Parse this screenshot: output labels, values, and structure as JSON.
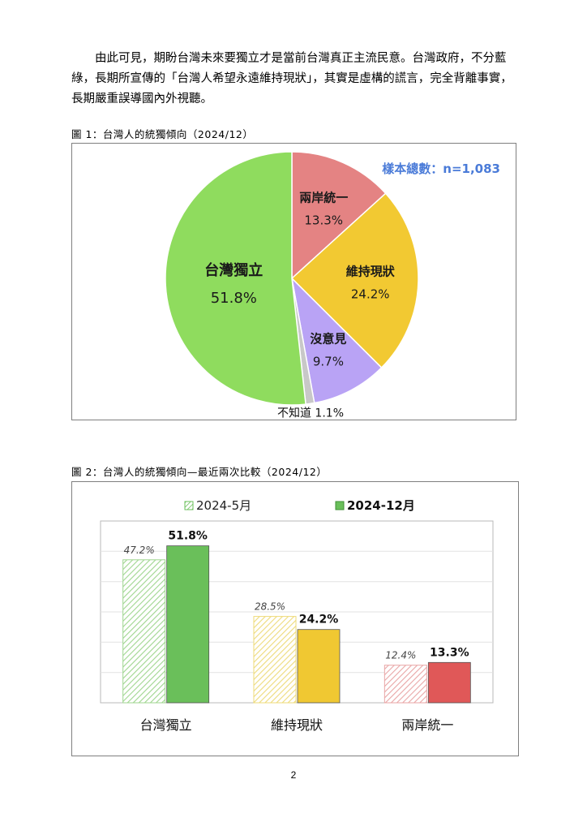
{
  "document": {
    "paragraph": "由此可見，期盼台灣未來要獨立才是當前台灣真正主流民意。台灣政府，不分藍綠，長期所宣傳的「台灣人希望永遠維持現狀」，其實是虛構的謊言，完全背離事實，長期嚴重誤導國內外視聽。",
    "figure1_caption": "圖 1：台灣人的統獨傾向（2024/12）",
    "figure2_caption": "圖 2：台灣人的統獨傾向—最近兩次比較（2024/12）",
    "page_number": "2"
  },
  "chart_data": [
    {
      "type": "pie",
      "title": "",
      "sample_note": "樣本總數：n=1,083",
      "slices": [
        {
          "label": "兩岸統一",
          "value": 13.3,
          "display": "13.3%",
          "color": "#e48383"
        },
        {
          "label": "維持現狀",
          "value": 24.2,
          "display": "24.2%",
          "color": "#f2c932"
        },
        {
          "label": "沒意見",
          "value": 9.7,
          "display": "9.7%",
          "color": "#b9a3f5"
        },
        {
          "label": "不知道",
          "value": 1.1,
          "display": "1.1%",
          "color": "#c8c8c8"
        },
        {
          "label": "台灣獨立",
          "value": 51.8,
          "display": "51.8%",
          "color": "#8fdc5e"
        }
      ],
      "note_color": "#4a7bd8"
    },
    {
      "type": "bar",
      "title": "",
      "categories": [
        "台灣獨立",
        "維持現狀",
        "兩岸統一"
      ],
      "series": [
        {
          "name": "2024-5月",
          "values": [
            47.2,
            28.5,
            12.4
          ],
          "labels": [
            "47.2%",
            "28.5%",
            "12.4%"
          ],
          "style": "hatched"
        },
        {
          "name": "2024-12月",
          "values": [
            51.8,
            24.2,
            13.3
          ],
          "labels": [
            "51.8%",
            "24.2%",
            "13.3%"
          ],
          "style": "solid"
        }
      ],
      "category_colors": [
        "#6abf5a",
        "#f0c832",
        "#e05858"
      ],
      "hatch_colors": [
        "#9fd68f",
        "#eedb7a",
        "#e9a6a6"
      ],
      "ylim": [
        0,
        60
      ],
      "grid": true,
      "legend_position": "top"
    }
  ]
}
